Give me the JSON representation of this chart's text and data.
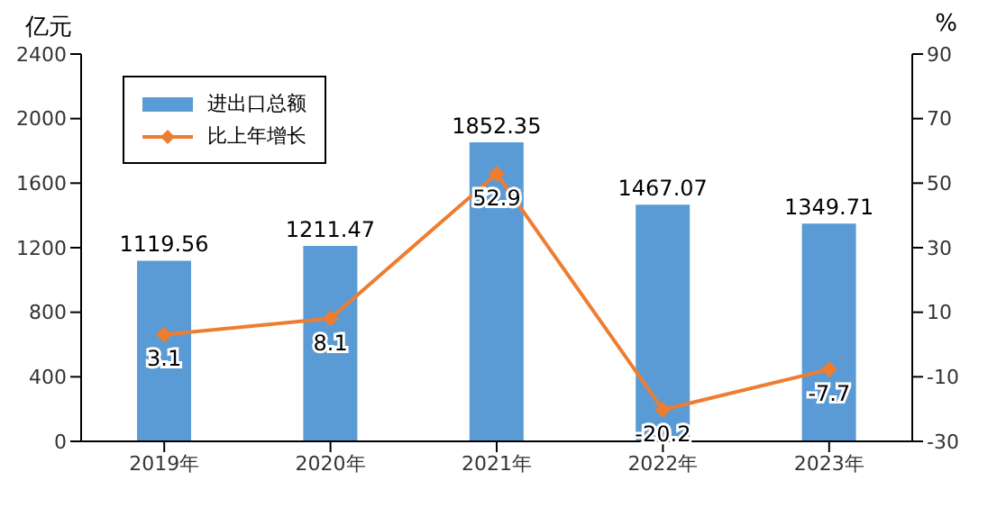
{
  "chart_data": {
    "type": "bar",
    "ylabel": "亿元",
    "y2label": "%",
    "categories": [
      "2019年",
      "2020年",
      "2021年",
      "2022年",
      "2023年"
    ],
    "series": [
      {
        "name": "进出口总额",
        "color": "#5b9bd5",
        "values": [
          1119.56,
          1211.47,
          1852.35,
          1467.07,
          1349.71
        ]
      },
      {
        "name": "比上年增长",
        "type": "line",
        "axis": "y2",
        "color": "#ed7d31",
        "marker": "diamond",
        "values": [
          3.1,
          8.1,
          52.9,
          -20.2,
          -7.7
        ]
      }
    ],
    "ylim": [
      0,
      2400
    ],
    "yticks": [
      0,
      400,
      800,
      1200,
      1600,
      2000,
      2400
    ],
    "y2lim": [
      -30,
      90
    ],
    "y2ticks": [
      -30,
      -10,
      10,
      30,
      50,
      70,
      90
    ],
    "data_labels": true,
    "legend": "top left",
    "grid": false
  }
}
